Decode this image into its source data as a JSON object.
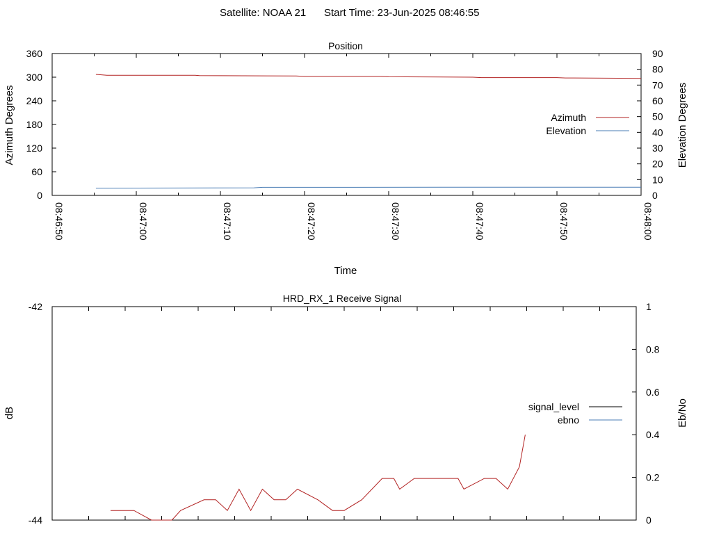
{
  "header": {
    "satellite": "Satellite: NOAA 21",
    "start_time": "Start Time: 23-Jun-2025 08:46:55"
  },
  "chart_data": [
    {
      "type": "line",
      "title": "Position",
      "xlabel": "Time",
      "ylabel": "Azimuth Degrees",
      "y2label": "Elevation Degrees",
      "x_ticks": [
        "08:46:50",
        "08:47:00",
        "08:47:10",
        "08:47:20",
        "08:47:30",
        "08:47:40",
        "08:47:50",
        "08:48:00"
      ],
      "xlim_seconds": [
        0,
        70
      ],
      "ylim": [
        0,
        360
      ],
      "y_ticks": [
        0,
        60,
        120,
        180,
        240,
        300,
        360
      ],
      "y2lim": [
        0,
        90
      ],
      "y2_ticks": [
        0,
        10,
        20,
        30,
        40,
        50,
        60,
        70,
        80,
        90
      ],
      "legend_position": "right",
      "series": [
        {
          "name": "Azimuth",
          "color": "#b22222",
          "axis": "left",
          "points": [
            [
              5.2,
              307
            ],
            [
              6.5,
              305
            ],
            [
              17,
              305
            ],
            [
              17.5,
              304
            ],
            [
              29,
              303
            ],
            [
              30,
              302
            ],
            [
              39,
              302
            ],
            [
              40,
              301
            ],
            [
              50,
              300
            ],
            [
              51,
              299
            ],
            [
              60,
              299
            ],
            [
              61,
              298
            ],
            [
              62,
              298
            ],
            [
              70,
              297
            ]
          ]
        },
        {
          "name": "Elevation",
          "color": "#4a7db5",
          "axis": "right",
          "points": [
            [
              5.2,
              4.6
            ],
            [
              24,
              4.8
            ],
            [
              25,
              5.1
            ],
            [
              70,
              5.2
            ]
          ]
        }
      ]
    },
    {
      "type": "line",
      "title": "HRD_RX_1 Receive Signal",
      "ylabel": "dB",
      "y2label": "Eb/No",
      "ylim": [
        -44,
        -42
      ],
      "y_ticks": [
        -44,
        -42
      ],
      "y2lim": [
        0,
        1
      ],
      "y2_ticks": [
        "0",
        "0.2",
        "0.4",
        "0.6",
        "0.8",
        "1"
      ],
      "legend_position": "right",
      "series": [
        {
          "name": "signal_level",
          "color": "#000000",
          "axis": "left",
          "points": []
        },
        {
          "name": "ebno",
          "color": "#4a7db5",
          "axis": "right",
          "points": []
        },
        {
          "name": "",
          "color": "#b22222",
          "axis": "right",
          "points": [
            [
              0.1,
              0.045
            ],
            [
              0.14,
              0.045
            ],
            [
              0.17,
              0.0
            ],
            [
              0.205,
              0.0
            ],
            [
              0.22,
              0.045
            ],
            [
              0.26,
              0.095
            ],
            [
              0.28,
              0.095
            ],
            [
              0.3,
              0.045
            ],
            [
              0.32,
              0.145
            ],
            [
              0.34,
              0.045
            ],
            [
              0.36,
              0.145
            ],
            [
              0.38,
              0.095
            ],
            [
              0.4,
              0.095
            ],
            [
              0.42,
              0.145
            ],
            [
              0.455,
              0.095
            ],
            [
              0.48,
              0.045
            ],
            [
              0.5,
              0.045
            ],
            [
              0.53,
              0.095
            ],
            [
              0.565,
              0.195
            ],
            [
              0.585,
              0.195
            ],
            [
              0.595,
              0.145
            ],
            [
              0.62,
              0.195
            ],
            [
              0.695,
              0.195
            ],
            [
              0.705,
              0.145
            ],
            [
              0.74,
              0.195
            ],
            [
              0.76,
              0.195
            ],
            [
              0.78,
              0.145
            ],
            [
              0.8,
              0.25
            ],
            [
              0.81,
              0.4
            ]
          ]
        }
      ]
    }
  ]
}
